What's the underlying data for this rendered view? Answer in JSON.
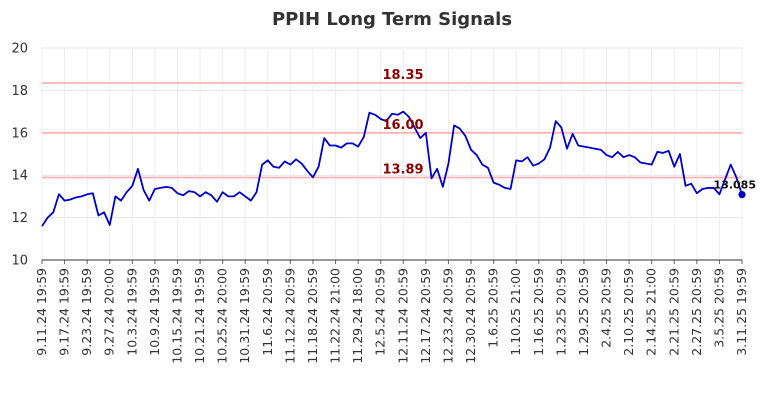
{
  "chart_data": {
    "type": "line",
    "title": "PPIH Long Term Signals",
    "ylim": [
      10,
      20
    ],
    "yticks": [
      10,
      12,
      14,
      16,
      18,
      20
    ],
    "grid": true,
    "x_tick_labels": [
      "9.11.24 19:59",
      "9.17.24 19:59",
      "9.23.24 19:59",
      "9.27.24 20:00",
      "10.3.24 19:59",
      "10.9.24 19:59",
      "10.15.24 19:59",
      "10.21.24 19:59",
      "10.25.24 20:00",
      "10.31.24 19:59",
      "11.6.24 20:59",
      "11.12.24 20:59",
      "11.18.24 20:59",
      "11.22.24 21:00",
      "11.29.24 18:00",
      "12.5.24 20:59",
      "12.11.24 20:59",
      "12.17.24 20:59",
      "12.23.24 20:59",
      "12.30.24 20:59",
      "1.6.25 20:59",
      "1.10.25 21:00",
      "1.16.25 20:59",
      "1.23.25 20:59",
      "1.29.25 20:59",
      "2.4.25 20:59",
      "2.10.25 20:59",
      "2.14.25 21:00",
      "2.21.25 20:59",
      "2.27.25 20:59",
      "3.5.25 20:59",
      "3.11.25 19:59"
    ],
    "reference_lines": [
      {
        "value": 18.35,
        "label": "18.35",
        "color": "#ffb3b3"
      },
      {
        "value": 16.0,
        "label": "16.00",
        "color": "#ffb3b3"
      },
      {
        "value": 13.89,
        "label": "13.89",
        "color": "#ffb3b3"
      }
    ],
    "last_point_label": "13.085",
    "series": [
      {
        "color": "#0000cc",
        "values": [
          11.6,
          12.0,
          12.25,
          13.1,
          12.8,
          12.85,
          12.95,
          13.0,
          13.1,
          13.15,
          12.1,
          12.25,
          11.65,
          13.0,
          12.8,
          13.2,
          13.5,
          14.3,
          13.3,
          12.8,
          13.35,
          13.4,
          13.45,
          13.4,
          13.15,
          13.05,
          13.25,
          13.2,
          13.0,
          13.2,
          13.05,
          12.75,
          13.2,
          13.0,
          13.0,
          13.2,
          13.0,
          12.8,
          13.2,
          14.5,
          14.7,
          14.4,
          14.35,
          14.65,
          14.5,
          14.75,
          14.55,
          14.2,
          13.9,
          14.4,
          15.75,
          15.4,
          15.4,
          15.3,
          15.5,
          15.5,
          15.35,
          15.8,
          16.95,
          16.85,
          16.65,
          16.55,
          16.9,
          16.85,
          17.0,
          16.75,
          16.25,
          15.75,
          16.0,
          13.85,
          14.3,
          13.45,
          14.55,
          16.35,
          16.2,
          15.85,
          15.2,
          14.95,
          14.5,
          14.35,
          13.65,
          13.55,
          13.4,
          13.35,
          14.7,
          14.65,
          14.85,
          14.45,
          14.55,
          14.75,
          15.3,
          16.55,
          16.25,
          15.25,
          15.95,
          15.4,
          15.35,
          15.3,
          15.25,
          15.2,
          14.95,
          14.85,
          15.1,
          14.85,
          14.95,
          14.85,
          14.6,
          14.55,
          14.5,
          15.1,
          15.05,
          15.15,
          14.4,
          15.0,
          13.5,
          13.6,
          13.15,
          13.35,
          13.4,
          13.4,
          13.1,
          13.8,
          14.5,
          13.9,
          13.085
        ]
      }
    ]
  }
}
